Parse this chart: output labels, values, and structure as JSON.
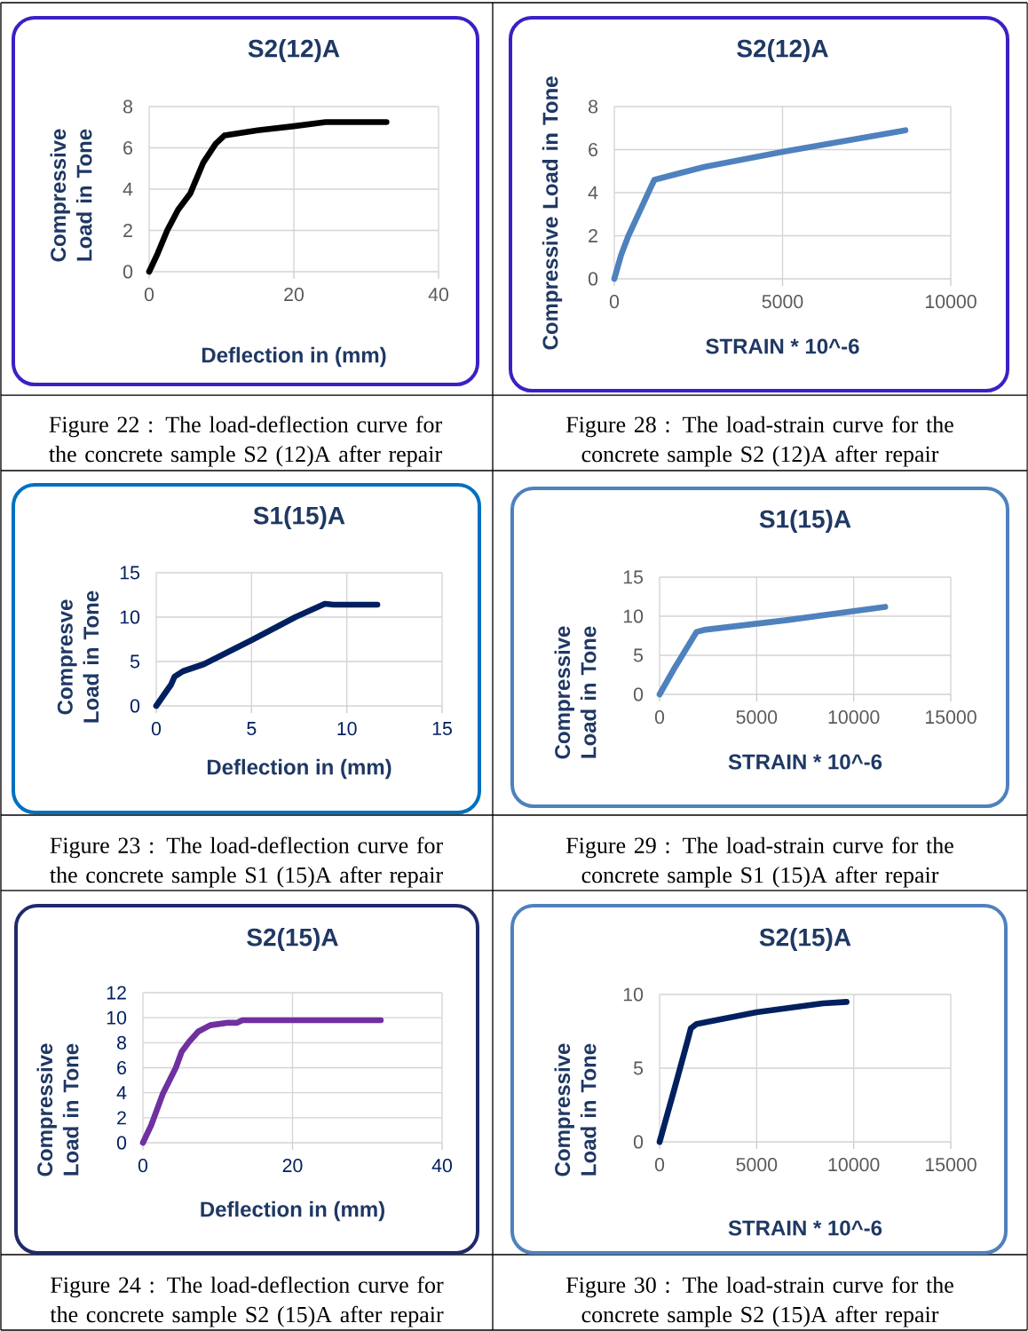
{
  "chart_data": [
    {
      "type": "line",
      "title": "S2(12)A",
      "xlabel": "Deflection in (mm)",
      "ylabel": "Compressive Load in Tone",
      "annotations": [
        "Figure 22  : The load-deflection curve for the concrete sample  S2 (12)A after repair"
      ],
      "color": "#000000",
      "grid": true,
      "xlim": [
        0,
        40
      ],
      "ylim": [
        0,
        8
      ],
      "xticks": [
        0,
        20,
        40
      ],
      "yticks": [
        0,
        2,
        4,
        6,
        8
      ],
      "x": [
        0,
        1.2,
        2.5,
        4,
        5.7,
        7.5,
        9.2,
        10.4,
        15,
        20,
        24.4,
        32.8
      ],
      "values": [
        0,
        0.9,
        2.0,
        3.0,
        3.8,
        5.3,
        6.2,
        6.6,
        6.85,
        7.05,
        7.25,
        7.25
      ]
    },
    {
      "type": "line",
      "title": "S2(12)A",
      "xlabel": "STRAIN * 10^-6",
      "ylabel": "Compressive Load in Tone",
      "annotations": [
        "Figure 28  : The load-strain curve for the concrete sample  S2 (12)A after repair"
      ],
      "color": "#4f81bd",
      "grid": true,
      "xlim": [
        0,
        10000
      ],
      "ylim": [
        0,
        8
      ],
      "xticks": [
        0,
        5000,
        10000
      ],
      "yticks": [
        0,
        2,
        4,
        6,
        8
      ],
      "x": [
        0,
        200,
        420,
        1040,
        1190,
        2670,
        5000,
        8650
      ],
      "values": [
        0,
        1.1,
        2.0,
        4.1,
        4.6,
        5.2,
        5.9,
        6.9
      ]
    },
    {
      "type": "line",
      "title": "S1(15)A",
      "xlabel": "Deflection in (mm)",
      "ylabel": "Compresve Load in Tone",
      "annotations": [
        "Figure 23  : The load-deflection curve for the concrete sample  S1 (15)A after repair"
      ],
      "color": "#002060",
      "grid": true,
      "xlim": [
        0,
        15
      ],
      "ylim": [
        0,
        15
      ],
      "xticks": [
        0,
        5,
        10,
        15
      ],
      "yticks": [
        0,
        5,
        10,
        15
      ],
      "x": [
        0,
        0.55,
        0.78,
        0.96,
        1.4,
        2.5,
        5,
        7.3,
        8.85,
        9.3,
        11.6
      ],
      "values": [
        0,
        1.7,
        2.4,
        3.3,
        3.9,
        4.7,
        7.4,
        10.0,
        11.5,
        11.4,
        11.4
      ]
    },
    {
      "type": "line",
      "title": "S1(15)A",
      "xlabel": "STRAIN * 10^-6",
      "ylabel": "Compressive Load in Tone",
      "annotations": [
        "Figure 29  : The load-strain curve for the concrete sample  S1 (15)A after repair"
      ],
      "color": "#4f81bd",
      "grid": true,
      "xlim": [
        0,
        15000
      ],
      "ylim": [
        0,
        15
      ],
      "xticks": [
        0,
        5000,
        10000,
        15000
      ],
      "yticks": [
        0,
        5,
        10,
        15
      ],
      "x": [
        0,
        730,
        1910,
        2290,
        6570,
        11620
      ],
      "values": [
        0,
        3.2,
        8.0,
        8.25,
        9.5,
        11.2
      ]
    },
    {
      "type": "line",
      "title": "S2(15)A",
      "xlabel": "Deflection in (mm)",
      "ylabel": "Compressive Load in Tone",
      "annotations": [
        "Figure 24  : The load-deflection curve for the concrete sample  S2 (15)A after repair"
      ],
      "color": "#7030a0",
      "grid": true,
      "xlim": [
        0,
        40
      ],
      "ylim": [
        0,
        12
      ],
      "xticks": [
        0,
        20,
        40
      ],
      "yticks": [
        0,
        2,
        4,
        6,
        8,
        10,
        12
      ],
      "x": [
        0,
        1.1,
        2.65,
        4.4,
        5.2,
        6.2,
        7.4,
        9.0,
        11.4,
        12.6,
        13.3,
        16.5,
        31.8
      ],
      "values": [
        0,
        1.4,
        3.9,
        6.0,
        7.3,
        8.1,
        8.9,
        9.4,
        9.6,
        9.6,
        9.8,
        9.8,
        9.8
      ]
    },
    {
      "type": "line",
      "title": "S2(15)A",
      "xlabel": "STRAIN * 10^-6",
      "ylabel": "Compressive Load in Tone",
      "annotations": [
        "Figure 30  : The load-strain curve for the concrete sample  S2 (15)A after repair"
      ],
      "color": "#002060",
      "grid": true,
      "xlim": [
        0,
        15000
      ],
      "ylim": [
        0,
        10
      ],
      "xticks": [
        0,
        5000,
        10000,
        15000
      ],
      "yticks": [
        0,
        5,
        10
      ],
      "x": [
        0,
        765,
        1450,
        1610,
        1910,
        5000,
        8410,
        9630
      ],
      "values": [
        0,
        3.6,
        6.9,
        7.7,
        8.0,
        8.8,
        9.4,
        9.5
      ]
    }
  ]
}
